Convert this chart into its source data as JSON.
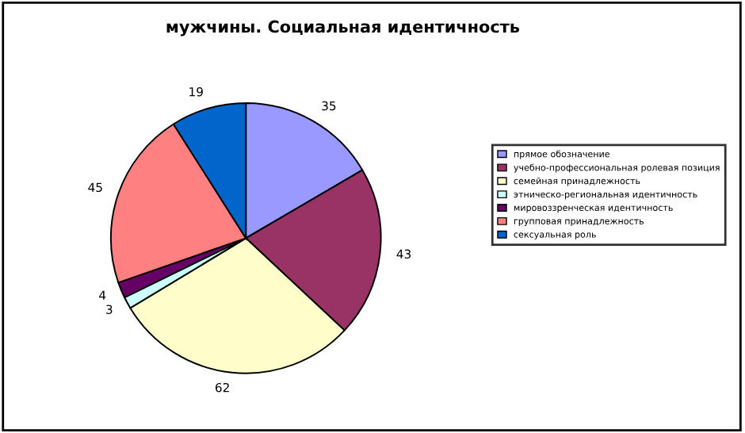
{
  "chart_data": {
    "type": "pie",
    "title": "мужчины. Социальная идентичность",
    "categories": [
      "прямое обозначение",
      "учебно-профессиональная ролевая позиция",
      "семейная принадлежность",
      "этническо-региональная идентичность",
      "мировоззренческая идентичность",
      "групповая принадлежность",
      "сексуальная роль"
    ],
    "values": [
      35,
      43,
      62,
      3,
      4,
      45,
      19
    ],
    "colors": [
      "#9999ff",
      "#993366",
      "#ffffcc",
      "#ccffff",
      "#660066",
      "#ff8080",
      "#0066cc"
    ],
    "data_labels": true,
    "legend": "right"
  }
}
